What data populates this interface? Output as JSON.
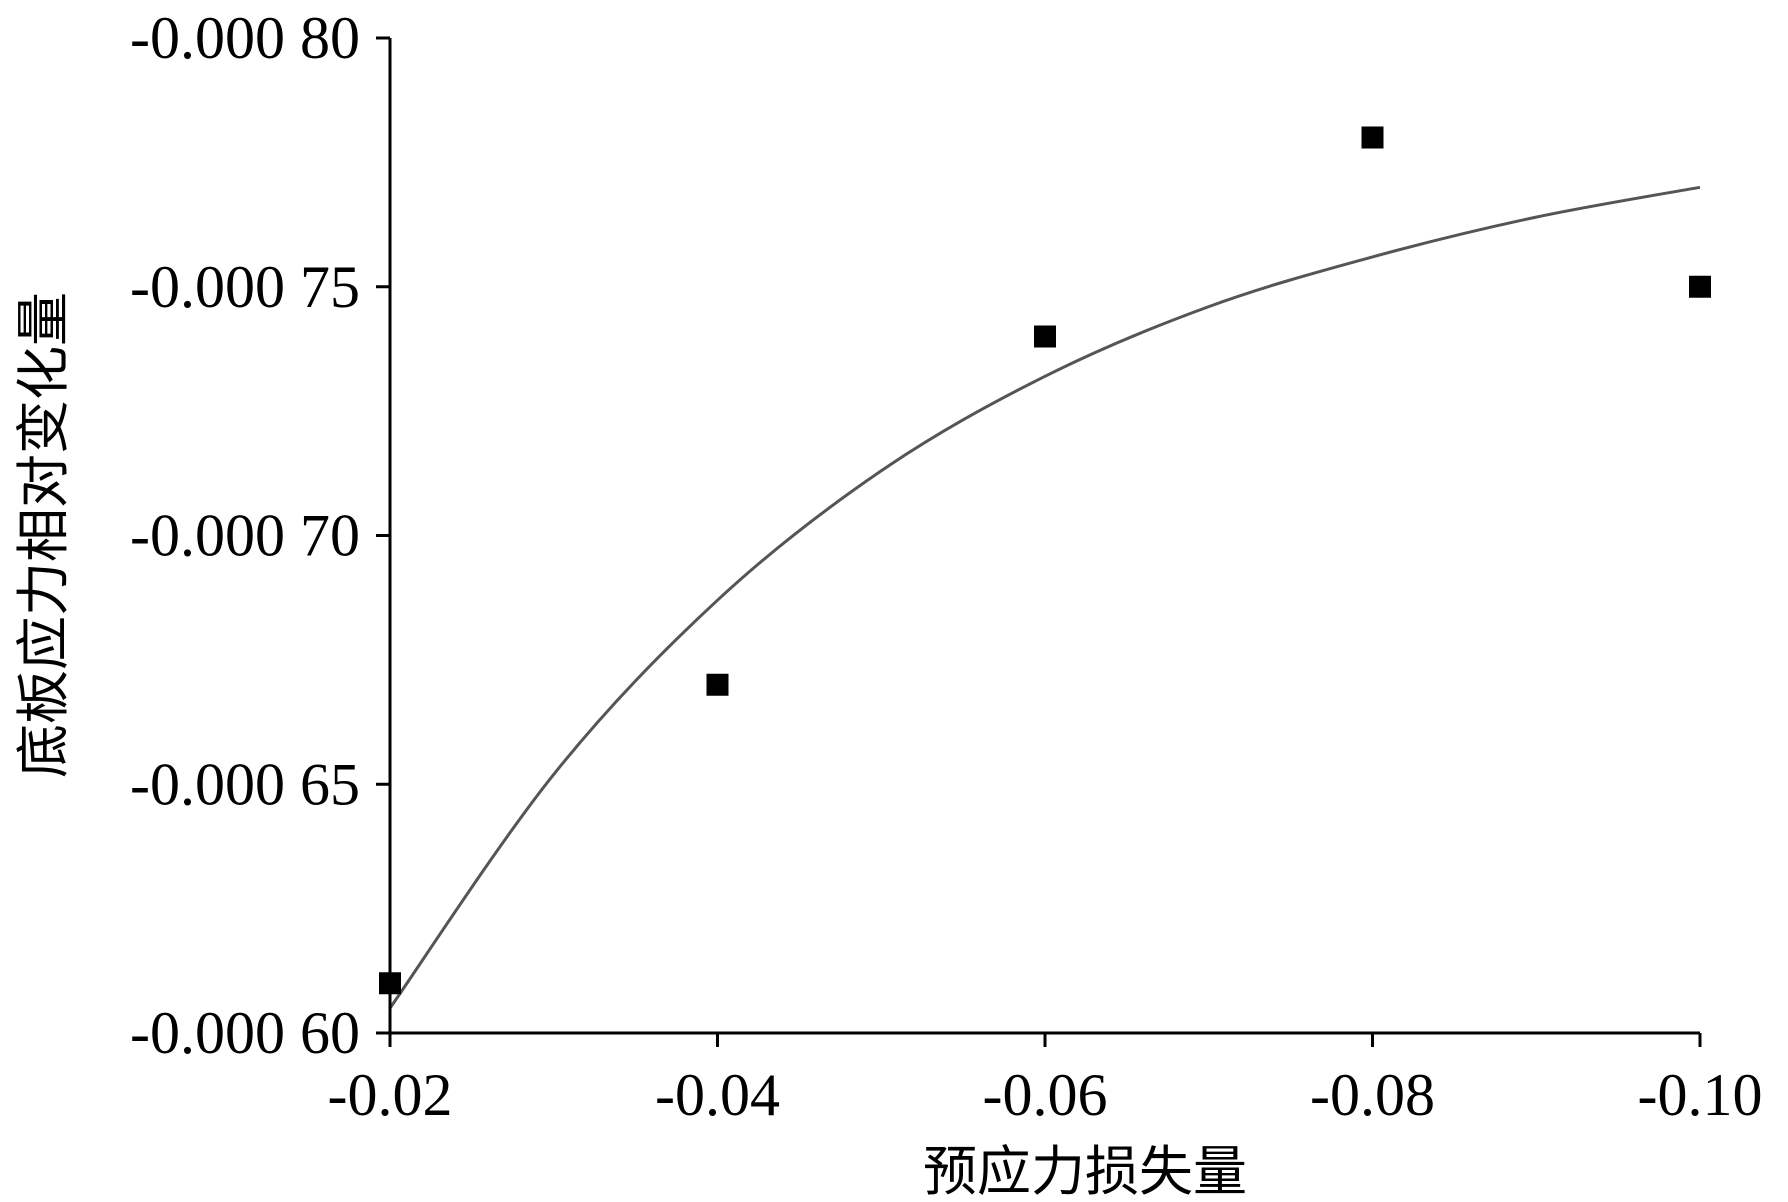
{
  "chart_data": {
    "type": "scatter",
    "title": "",
    "xlabel": "预应力损失量",
    "ylabel": "底板应力相对变化量",
    "x_ticks": [
      -0.02,
      -0.04,
      -0.06,
      -0.08,
      -0.1
    ],
    "x_tick_labels": [
      "-0.02",
      "-0.04",
      "-0.06",
      "-0.08",
      "-0.10"
    ],
    "y_ticks": [
      -0.0006,
      -0.00065,
      -0.0007,
      -0.00075,
      -0.0008
    ],
    "y_tick_labels": [
      "-0.000 60",
      "-0.000 65",
      "-0.000 70",
      "-0.000 75",
      "-0.000 80"
    ],
    "xlim": [
      -0.02,
      -0.1
    ],
    "ylim": [
      -0.0006,
      -0.0008
    ],
    "grid": false,
    "legend": "none",
    "series": [
      {
        "kind": "points",
        "marker": "square",
        "color": "#000000",
        "x": [
          -0.02,
          -0.04,
          -0.06,
          -0.08,
          -0.1
        ],
        "y": [
          -0.00061,
          -0.00067,
          -0.00074,
          -0.00078,
          -0.00075
        ]
      },
      {
        "kind": "fit-curve",
        "color": "#555555",
        "x": [
          -0.02,
          -0.03,
          -0.04,
          -0.05,
          -0.06,
          -0.07,
          -0.08,
          -0.09,
          -0.1
        ],
        "y": [
          -0.000605,
          -0.000652,
          -0.000687,
          -0.000713,
          -0.000732,
          -0.000746,
          -0.000756,
          -0.000764,
          -0.00077
        ]
      }
    ]
  }
}
